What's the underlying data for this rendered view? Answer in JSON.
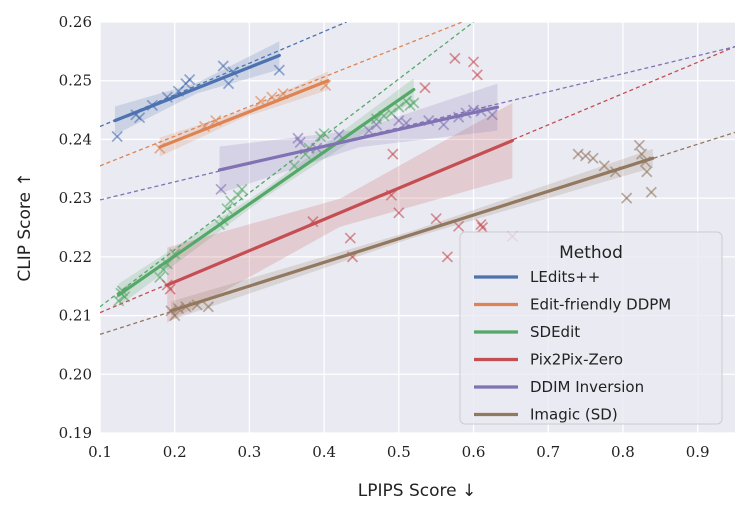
{
  "chart_data": {
    "type": "scatter",
    "title": "",
    "xlabel": "LPIPS Score ↓",
    "ylabel": "CLIP Score ↑",
    "xlim": [
      0.1,
      0.95
    ],
    "ylim": [
      0.19,
      0.26
    ],
    "xticks": [
      0.1,
      0.2,
      0.3,
      0.4,
      0.5,
      0.6,
      0.7,
      0.8,
      0.9
    ],
    "yticks": [
      0.19,
      0.2,
      0.21,
      0.22,
      0.23,
      0.24,
      0.25,
      0.26
    ],
    "xtick_labels": [
      "0.1",
      "0.2",
      "0.3",
      "0.4",
      "0.5",
      "0.6",
      "0.7",
      "0.8",
      "0.9"
    ],
    "ytick_labels": [
      "0.19",
      "0.20",
      "0.21",
      "0.22",
      "0.23",
      "0.24",
      "0.25",
      "0.26"
    ],
    "grid": true,
    "background": "#eaeaf2",
    "legend": {
      "title": "Method",
      "placement": "bottom-right"
    },
    "series": [
      {
        "name": "LEdits++",
        "color": "#4c72b0",
        "fit": {
          "x": [
            0.12,
            0.34
          ],
          "y": [
            0.2432,
            0.2543
          ]
        },
        "extrap": {
          "x": [
            0.1,
            0.43
          ],
          "y": [
            0.2422,
            0.26
          ]
        },
        "band": 0.0015,
        "points": [
          [
            0.123,
            0.2405
          ],
          [
            0.148,
            0.2442
          ],
          [
            0.153,
            0.2437
          ],
          [
            0.17,
            0.2458
          ],
          [
            0.19,
            0.2472
          ],
          [
            0.205,
            0.2482
          ],
          [
            0.215,
            0.2495
          ],
          [
            0.22,
            0.2502
          ],
          [
            0.265,
            0.2525
          ],
          [
            0.272,
            0.2495
          ],
          [
            0.278,
            0.2515
          ],
          [
            0.34,
            0.2518
          ]
        ]
      },
      {
        "name": "Edit-friendly DDPM",
        "color": "#dd8452",
        "fit": {
          "x": [
            0.18,
            0.405
          ],
          "y": [
            0.2387,
            0.25
          ]
        },
        "extrap": {
          "x": [
            0.1,
            0.585
          ],
          "y": [
            0.2355,
            0.26
          ]
        },
        "band": 0.001,
        "points": [
          [
            0.18,
            0.2385
          ],
          [
            0.24,
            0.2422
          ],
          [
            0.255,
            0.2432
          ],
          [
            0.315,
            0.2465
          ],
          [
            0.33,
            0.2472
          ],
          [
            0.345,
            0.2478
          ],
          [
            0.402,
            0.2492
          ]
        ]
      },
      {
        "name": "SDEdit",
        "color": "#55a868",
        "fit": {
          "x": [
            0.125,
            0.52
          ],
          "y": [
            0.2135,
            0.2485
          ]
        },
        "extrap": {
          "x": [
            0.1,
            0.6
          ],
          "y": [
            0.2115,
            0.26
          ]
        },
        "band": 0.0012,
        "points": [
          [
            0.125,
            0.2125
          ],
          [
            0.128,
            0.2138
          ],
          [
            0.13,
            0.2142
          ],
          [
            0.133,
            0.2132
          ],
          [
            0.18,
            0.2165
          ],
          [
            0.185,
            0.2178
          ],
          [
            0.19,
            0.2188
          ],
          [
            0.2,
            0.2205
          ],
          [
            0.26,
            0.2255
          ],
          [
            0.265,
            0.2262
          ],
          [
            0.27,
            0.2282
          ],
          [
            0.275,
            0.2295
          ],
          [
            0.285,
            0.2305
          ],
          [
            0.29,
            0.2315
          ],
          [
            0.36,
            0.2355
          ],
          [
            0.375,
            0.2375
          ],
          [
            0.38,
            0.2385
          ],
          [
            0.395,
            0.2405
          ],
          [
            0.4,
            0.241
          ],
          [
            0.47,
            0.2435
          ],
          [
            0.48,
            0.244
          ],
          [
            0.49,
            0.2445
          ],
          [
            0.5,
            0.2455
          ],
          [
            0.51,
            0.2465
          ],
          [
            0.52,
            0.2462
          ],
          [
            0.515,
            0.2458
          ]
        ]
      },
      {
        "name": "Pix2Pix-Zero",
        "color": "#c44e52",
        "fit": {
          "x": [
            0.19,
            0.652
          ],
          "y": [
            0.2152,
            0.2398
          ]
        },
        "extrap": {
          "x": [
            0.1,
            0.95
          ],
          "y": [
            0.2105,
            0.2558
          ]
        },
        "band": 0.004,
        "points": [
          [
            0.19,
            0.2152
          ],
          [
            0.194,
            0.2145
          ],
          [
            0.385,
            0.226
          ],
          [
            0.435,
            0.2232
          ],
          [
            0.438,
            0.22
          ],
          [
            0.49,
            0.2305
          ],
          [
            0.492,
            0.2375
          ],
          [
            0.5,
            0.2275
          ],
          [
            0.535,
            0.2488
          ],
          [
            0.55,
            0.2265
          ],
          [
            0.565,
            0.22
          ],
          [
            0.575,
            0.2538
          ],
          [
            0.58,
            0.2252
          ],
          [
            0.6,
            0.2532
          ],
          [
            0.605,
            0.251
          ],
          [
            0.61,
            0.2255
          ],
          [
            0.612,
            0.225
          ],
          [
            0.652,
            0.2235
          ]
        ]
      },
      {
        "name": "DDIM Inversion",
        "color": "#8172b3",
        "fit": {
          "x": [
            0.26,
            0.632
          ],
          "y": [
            0.2348,
            0.2455
          ]
        },
        "extrap": {
          "x": [
            0.1,
            0.95
          ],
          "y": [
            0.2297,
            0.2558
          ]
        },
        "band": 0.0025,
        "points": [
          [
            0.262,
            0.2315
          ],
          [
            0.365,
            0.2402
          ],
          [
            0.368,
            0.2395
          ],
          [
            0.39,
            0.2385
          ],
          [
            0.42,
            0.2408
          ],
          [
            0.46,
            0.2415
          ],
          [
            0.47,
            0.2425
          ],
          [
            0.5,
            0.2432
          ],
          [
            0.51,
            0.2428
          ],
          [
            0.54,
            0.2432
          ],
          [
            0.56,
            0.2425
          ],
          [
            0.58,
            0.2438
          ],
          [
            0.59,
            0.2445
          ],
          [
            0.6,
            0.245
          ],
          [
            0.61,
            0.2448
          ],
          [
            0.625,
            0.2442
          ]
        ]
      },
      {
        "name": "Imagic (SD)",
        "color": "#937860",
        "fit": {
          "x": [
            0.195,
            0.84
          ],
          "y": [
            0.2108,
            0.2368
          ]
        },
        "extrap": {
          "x": [
            0.1,
            0.95
          ],
          "y": [
            0.2068,
            0.2412
          ]
        },
        "band": 0.001,
        "points": [
          [
            0.195,
            0.2108
          ],
          [
            0.2,
            0.21
          ],
          [
            0.205,
            0.2112
          ],
          [
            0.215,
            0.2115
          ],
          [
            0.23,
            0.2118
          ],
          [
            0.245,
            0.2115
          ],
          [
            0.74,
            0.2375
          ],
          [
            0.75,
            0.2372
          ],
          [
            0.76,
            0.2368
          ],
          [
            0.775,
            0.2355
          ],
          [
            0.79,
            0.2345
          ],
          [
            0.805,
            0.23
          ],
          [
            0.822,
            0.239
          ],
          [
            0.825,
            0.2375
          ],
          [
            0.83,
            0.2362
          ],
          [
            0.832,
            0.2345
          ],
          [
            0.838,
            0.231
          ]
        ]
      }
    ]
  }
}
